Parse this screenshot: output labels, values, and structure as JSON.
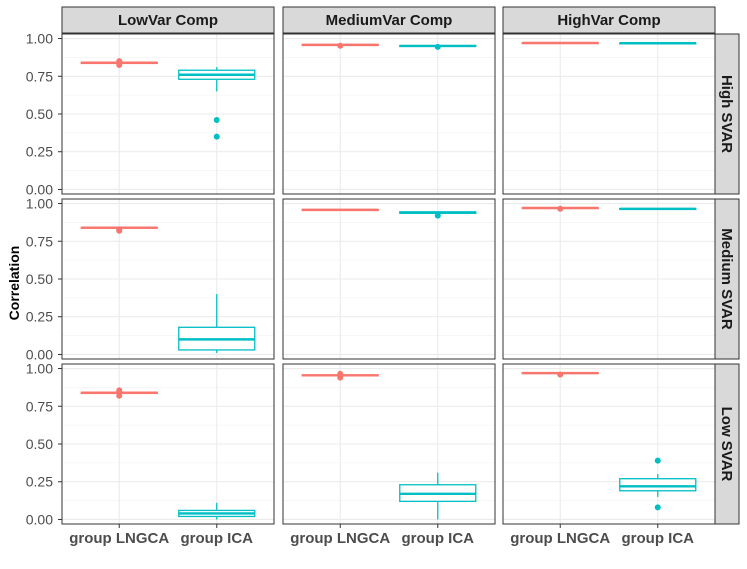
{
  "chart_data": {
    "type": "boxplot",
    "title": "",
    "ylabel": "Correlation",
    "xlabel": "",
    "ylim": [
      -0.03,
      1.03
    ],
    "yticks": [
      0.0,
      0.25,
      0.5,
      0.75,
      1.0
    ],
    "ytick_labels": [
      "0.00",
      "0.25",
      "0.50",
      "0.75",
      "1.00"
    ],
    "categories": [
      "group LNGCA",
      "group ICA"
    ],
    "col_facets": [
      "LowVar Comp",
      "MediumVar Comp",
      "HighVar Comp"
    ],
    "row_facets": [
      "High SVAR",
      "Medium SVAR",
      "Low SVAR"
    ],
    "colors": {
      "group LNGCA": "#F8766D",
      "group ICA": "#00BFC4"
    },
    "panels": [
      [
        {
          "group LNGCA": {
            "min": 0.83,
            "q1": 0.835,
            "median": 0.84,
            "q3": 0.842,
            "max": 0.845,
            "outliers": [
              0.825,
              0.85
            ]
          },
          "group ICA": {
            "min": 0.65,
            "q1": 0.73,
            "median": 0.76,
            "q3": 0.79,
            "max": 0.81,
            "outliers": [
              0.46,
              0.35
            ]
          }
        },
        {
          "group LNGCA": {
            "min": 0.955,
            "q1": 0.957,
            "median": 0.958,
            "q3": 0.96,
            "max": 0.962,
            "outliers": [
              0.952
            ]
          },
          "group ICA": {
            "min": 0.948,
            "q1": 0.95,
            "median": 0.951,
            "q3": 0.953,
            "max": 0.955,
            "outliers": [
              0.945
            ]
          }
        },
        {
          "group LNGCA": {
            "min": 0.968,
            "q1": 0.97,
            "median": 0.971,
            "q3": 0.972,
            "max": 0.974,
            "outliers": []
          },
          "group ICA": {
            "min": 0.966,
            "q1": 0.968,
            "median": 0.969,
            "q3": 0.97,
            "max": 0.972,
            "outliers": []
          }
        }
      ],
      [
        {
          "group LNGCA": {
            "min": 0.835,
            "q1": 0.838,
            "median": 0.84,
            "q3": 0.842,
            "max": 0.845,
            "outliers": [
              0.82,
              0.828
            ]
          },
          "group ICA": {
            "min": 0.01,
            "q1": 0.03,
            "median": 0.1,
            "q3": 0.18,
            "max": 0.4,
            "outliers": []
          }
        },
        {
          "group LNGCA": {
            "min": 0.955,
            "q1": 0.957,
            "median": 0.958,
            "q3": 0.96,
            "max": 0.962,
            "outliers": []
          },
          "group ICA": {
            "min": 0.93,
            "q1": 0.935,
            "median": 0.94,
            "q3": 0.945,
            "max": 0.948,
            "outliers": [
              0.92
            ]
          }
        },
        {
          "group LNGCA": {
            "min": 0.968,
            "q1": 0.97,
            "median": 0.971,
            "q3": 0.972,
            "max": 0.974,
            "outliers": [
              0.965
            ]
          },
          "group ICA": {
            "min": 0.962,
            "q1": 0.964,
            "median": 0.965,
            "q3": 0.966,
            "max": 0.968,
            "outliers": []
          }
        }
      ],
      [
        {
          "group LNGCA": {
            "min": 0.83,
            "q1": 0.835,
            "median": 0.84,
            "q3": 0.842,
            "max": 0.845,
            "outliers": [
              0.82,
              0.855
            ]
          },
          "group ICA": {
            "min": 0.0,
            "q1": 0.02,
            "median": 0.04,
            "q3": 0.06,
            "max": 0.11,
            "outliers": []
          }
        },
        {
          "group LNGCA": {
            "min": 0.95,
            "q1": 0.953,
            "median": 0.955,
            "q3": 0.957,
            "max": 0.96,
            "outliers": [
              0.94,
              0.965
            ]
          },
          "group ICA": {
            "min": 0.0,
            "q1": 0.12,
            "median": 0.17,
            "q3": 0.23,
            "max": 0.31,
            "outliers": []
          }
        },
        {
          "group LNGCA": {
            "min": 0.965,
            "q1": 0.968,
            "median": 0.97,
            "q3": 0.972,
            "max": 0.974,
            "outliers": [
              0.96
            ]
          },
          "group ICA": {
            "min": 0.15,
            "q1": 0.19,
            "median": 0.22,
            "q3": 0.27,
            "max": 0.3,
            "outliers": [
              0.39,
              0.08
            ]
          }
        }
      ]
    ]
  }
}
